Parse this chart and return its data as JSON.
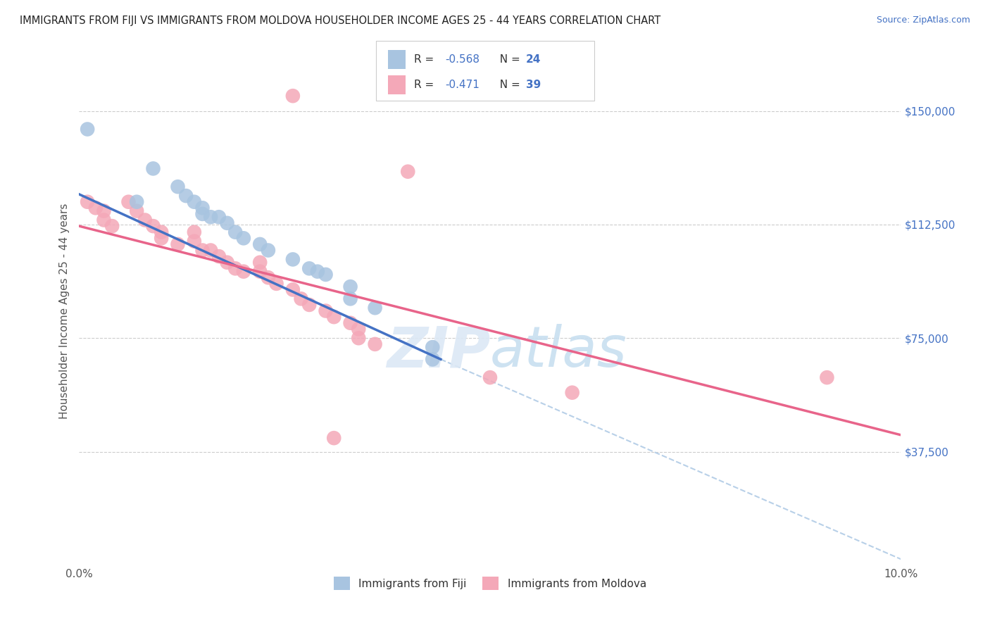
{
  "title": "IMMIGRANTS FROM FIJI VS IMMIGRANTS FROM MOLDOVA HOUSEHOLDER INCOME AGES 25 - 44 YEARS CORRELATION CHART",
  "source": "Source: ZipAtlas.com",
  "ylabel": "Householder Income Ages 25 - 44 years",
  "xlim": [
    0.0,
    0.1
  ],
  "ylim": [
    0,
    168000
  ],
  "xticks": [
    0.0,
    0.02,
    0.04,
    0.06,
    0.08,
    0.1
  ],
  "xticklabels": [
    "0.0%",
    "",
    "",
    "",
    "",
    "10.0%"
  ],
  "yticks_right": [
    37500,
    75000,
    112500,
    150000
  ],
  "ytick_labels_right": [
    "$37,500",
    "$75,000",
    "$112,500",
    "$150,000"
  ],
  "fiji_R": "-0.568",
  "fiji_N": "24",
  "moldova_R": "-0.471",
  "moldova_N": "39",
  "fiji_color": "#a8c4e0",
  "moldova_color": "#f4a8b8",
  "fiji_line_color": "#4472c4",
  "moldova_line_color": "#e8648a",
  "dashed_line_color": "#b8d0e8",
  "watermark_color": "#dce8f5",
  "legend_fiji_label": "Immigrants from Fiji",
  "legend_moldova_label": "Immigrants from Moldova",
  "fiji_scatter": [
    [
      0.001,
      144000
    ],
    [
      0.009,
      131000
    ],
    [
      0.012,
      125000
    ],
    [
      0.013,
      122000
    ],
    [
      0.014,
      120000
    ],
    [
      0.007,
      120000
    ],
    [
      0.015,
      118000
    ],
    [
      0.015,
      116000
    ],
    [
      0.016,
      115000
    ],
    [
      0.017,
      115000
    ],
    [
      0.018,
      113000
    ],
    [
      0.019,
      110000
    ],
    [
      0.02,
      108000
    ],
    [
      0.022,
      106000
    ],
    [
      0.023,
      104000
    ],
    [
      0.026,
      101000
    ],
    [
      0.028,
      98000
    ],
    [
      0.029,
      97000
    ],
    [
      0.03,
      96000
    ],
    [
      0.033,
      92000
    ],
    [
      0.033,
      88000
    ],
    [
      0.036,
      85000
    ],
    [
      0.043,
      72000
    ],
    [
      0.043,
      68000
    ]
  ],
  "moldova_scatter": [
    [
      0.001,
      120000
    ],
    [
      0.002,
      118000
    ],
    [
      0.003,
      117000
    ],
    [
      0.003,
      114000
    ],
    [
      0.004,
      112000
    ],
    [
      0.006,
      120000
    ],
    [
      0.007,
      117000
    ],
    [
      0.008,
      114000
    ],
    [
      0.009,
      112000
    ],
    [
      0.01,
      110000
    ],
    [
      0.01,
      108000
    ],
    [
      0.012,
      106000
    ],
    [
      0.014,
      110000
    ],
    [
      0.014,
      107000
    ],
    [
      0.015,
      104000
    ],
    [
      0.016,
      104000
    ],
    [
      0.017,
      102000
    ],
    [
      0.018,
      100000
    ],
    [
      0.019,
      98000
    ],
    [
      0.02,
      97000
    ],
    [
      0.022,
      100000
    ],
    [
      0.022,
      97000
    ],
    [
      0.023,
      95000
    ],
    [
      0.024,
      93000
    ],
    [
      0.026,
      91000
    ],
    [
      0.027,
      88000
    ],
    [
      0.028,
      86000
    ],
    [
      0.03,
      84000
    ],
    [
      0.031,
      82000
    ],
    [
      0.033,
      80000
    ],
    [
      0.034,
      78000
    ],
    [
      0.034,
      75000
    ],
    [
      0.036,
      73000
    ],
    [
      0.04,
      130000
    ],
    [
      0.026,
      155000
    ],
    [
      0.05,
      62000
    ],
    [
      0.06,
      57000
    ],
    [
      0.091,
      62000
    ],
    [
      0.031,
      42000
    ]
  ],
  "fiji_line_x": [
    0.0,
    0.044
  ],
  "fiji_line_y": [
    122500,
    68000
  ],
  "moldova_line_x": [
    0.0,
    0.1
  ],
  "moldova_line_y": [
    112000,
    43000
  ],
  "dash_line_x": [
    0.044,
    0.1
  ],
  "dash_line_y": [
    68000,
    2000
  ],
  "bubble_size": 220
}
